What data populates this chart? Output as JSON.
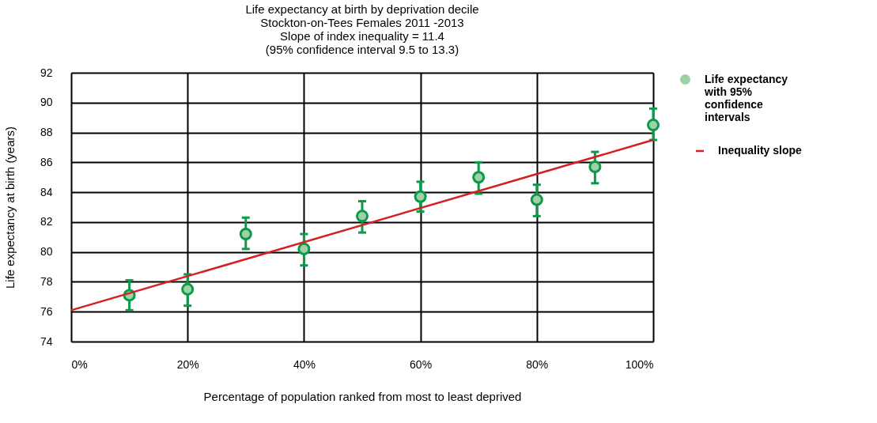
{
  "chart_data": {
    "type": "scatter",
    "title": [
      "Life expectancy at birth by deprivation decile",
      "Stockton-on-Tees Females 2011 -2013",
      "Slope of index inequality = 11.4",
      "(95% confidence interval 9.5 to 13.3)"
    ],
    "xlabel": "Percentage of population ranked from most to least deprived",
    "ylabel": "Life expectancy at birth (years)",
    "xlim": [
      0,
      100
    ],
    "xticks": [
      {
        "value": 0,
        "label": "0%"
      },
      {
        "value": 20,
        "label": "20%"
      },
      {
        "value": 40,
        "label": "40%"
      },
      {
        "value": 60,
        "label": "60%"
      },
      {
        "value": 80,
        "label": "80%"
      },
      {
        "value": 100,
        "label": "100%"
      }
    ],
    "ylim": [
      74,
      92
    ],
    "yticks": [
      74,
      76,
      78,
      80,
      82,
      84,
      86,
      88,
      90,
      92
    ],
    "grid": true,
    "legend": "right",
    "marker": "circle",
    "series": [
      {
        "name": "Life expectancy with 95% confidence intervals",
        "color": "#0a9a48",
        "x": [
          10,
          20,
          30,
          40,
          50,
          60,
          70,
          80,
          90,
          100
        ],
        "values": [
          77.1,
          77.5,
          81.2,
          80.2,
          82.4,
          83.7,
          85.0,
          83.5,
          85.7,
          88.5
        ],
        "errors": [
          [
            76.1,
            78.1
          ],
          [
            76.4,
            78.5
          ],
          [
            80.2,
            82.3
          ],
          [
            79.1,
            81.2
          ],
          [
            81.3,
            83.4
          ],
          [
            82.7,
            84.7
          ],
          [
            83.9,
            86.0
          ],
          [
            82.4,
            84.5
          ],
          [
            84.6,
            86.7
          ],
          [
            87.5,
            89.6
          ]
        ]
      },
      {
        "name": "Inequality slope",
        "type": "line",
        "color": "#d42020",
        "line_style": "solid",
        "marker": "none",
        "x": [
          0,
          100
        ],
        "values": [
          76.1,
          87.5
        ]
      }
    ]
  }
}
